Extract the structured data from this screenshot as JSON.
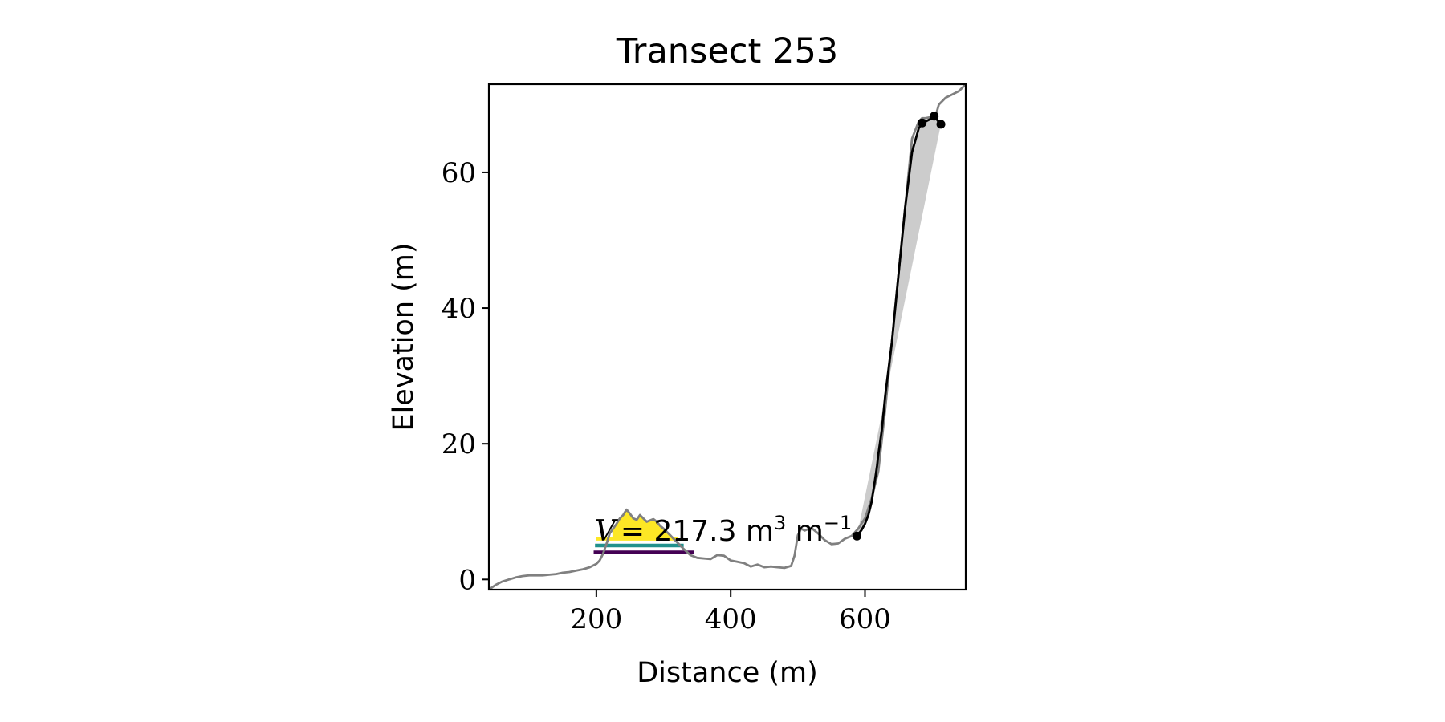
{
  "chart_data": {
    "type": "line",
    "title": "Transect 253",
    "xlabel": "Distance (m)",
    "ylabel": "Elevation (m)",
    "xlim": [
      40,
      750
    ],
    "ylim": [
      -1.5,
      73
    ],
    "xticks": [
      200,
      400,
      600
    ],
    "yticks": [
      0,
      20,
      40,
      60
    ],
    "grid": false,
    "legend": "none",
    "colors": {
      "profile": "#808080",
      "cliff_profile": "#000000",
      "cliff_fill": "#cccccc",
      "dune_fill": "#fde725",
      "level_high": "#fde725",
      "level_mid": "#21918c",
      "level_low": "#440154"
    },
    "profile": {
      "x": [
        40,
        50,
        60,
        70,
        80,
        90,
        100,
        110,
        120,
        130,
        140,
        150,
        160,
        170,
        180,
        190,
        200,
        205,
        210,
        215,
        220,
        225,
        230,
        235,
        240,
        245,
        250,
        255,
        260,
        265,
        270,
        275,
        280,
        285,
        290,
        295,
        300,
        305,
        310,
        315,
        320,
        325,
        330,
        340,
        350,
        360,
        370,
        380,
        390,
        400,
        410,
        420,
        430,
        440,
        450,
        460,
        470,
        480,
        490,
        495,
        500,
        505,
        510,
        515,
        520,
        530,
        540,
        550,
        560,
        570,
        580,
        590,
        600,
        610,
        620,
        630,
        640,
        650,
        660,
        670,
        680,
        685,
        690,
        700,
        705,
        710,
        715,
        720,
        730,
        740,
        750
      ],
      "y": [
        -1.5,
        -0.8,
        -0.3,
        0.0,
        0.3,
        0.5,
        0.6,
        0.6,
        0.6,
        0.7,
        0.8,
        1.0,
        1.1,
        1.3,
        1.5,
        1.8,
        2.3,
        2.8,
        3.8,
        5.2,
        6.8,
        7.5,
        8.2,
        9.0,
        9.5,
        10.3,
        9.7,
        9.0,
        8.8,
        9.5,
        9.0,
        8.5,
        8.7,
        8.9,
        8.5,
        7.9,
        7.5,
        7.0,
        6.5,
        6.0,
        5.5,
        5.0,
        4.5,
        3.6,
        3.2,
        3.1,
        3.0,
        3.6,
        3.5,
        2.8,
        2.6,
        2.4,
        1.9,
        2.2,
        1.8,
        1.9,
        1.8,
        1.7,
        2.0,
        3.5,
        6.5,
        7.5,
        7.2,
        7.4,
        7.6,
        6.8,
        5.8,
        5.2,
        5.3,
        6.0,
        6.4,
        7.5,
        9.0,
        12.0,
        16.0,
        25.0,
        35.0,
        45.0,
        55.0,
        65.0,
        67.5,
        68.0,
        68.0,
        68.2,
        68.3,
        70.0,
        70.5,
        71.0,
        71.5,
        72.0,
        73.0
      ]
    },
    "cliff_profile": {
      "x": [
        588,
        595,
        600,
        605,
        610,
        612,
        615,
        618,
        620,
        625,
        630,
        640,
        650,
        660,
        670,
        680,
        685,
        690,
        700,
        705,
        710,
        713
      ],
      "y": [
        6.4,
        7.3,
        8.2,
        9.5,
        11.5,
        12.8,
        14.8,
        16.8,
        18.5,
        22.0,
        27.0,
        35.0,
        45.0,
        55.0,
        63.0,
        66.5,
        67.3,
        67.5,
        68.0,
        68.1,
        67.4,
        67.1
      ]
    },
    "cliff_points": {
      "x": [
        588,
        685,
        703,
        713
      ],
      "y": [
        6.4,
        67.3,
        68.3,
        67.1
      ]
    },
    "cliff_chord": {
      "x": [
        588,
        713
      ],
      "y": [
        6.4,
        67.1
      ]
    },
    "dune_fill_x": [
      224,
      325
    ],
    "dune_fill_top_y": 6.0,
    "dune_levels": [
      {
        "level": "high",
        "x": [
          200,
          322
        ],
        "y": 6.0
      },
      {
        "level": "mid",
        "x": [
          198,
          330
        ],
        "y": 5.0
      },
      {
        "level": "low",
        "x": [
          196,
          345
        ],
        "y": 4.0
      }
    ],
    "annotation": {
      "x": 200,
      "y": 6.2,
      "symbol": "V",
      "text": "= 217.3 m",
      "sup1": "3",
      "text2": " m",
      "sup2": "−1"
    }
  }
}
